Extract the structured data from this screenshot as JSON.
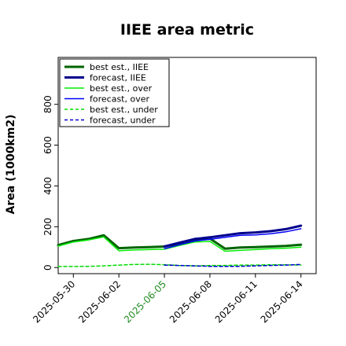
{
  "chart_data": {
    "type": "line",
    "title": "IIEE area metric",
    "xlabel": "",
    "ylabel": "Area (1000km2)",
    "ylim": [
      -30,
      1030
    ],
    "xlim": [
      "2025-05-29",
      "2025-06-15"
    ],
    "yticks": [
      0,
      200,
      400,
      600,
      800
    ],
    "yticklabels": [
      "0",
      "200",
      "400",
      "600",
      "800"
    ],
    "xticks": [
      "2025-05-30",
      "2025-06-02",
      "2025-06-05",
      "2025-06-08",
      "2025-06-11",
      "2025-06-14"
    ],
    "xticklabels": [
      "2025-05-30",
      "2025-06-02",
      "2025-06-05",
      "2025-06-08",
      "2025-06-11",
      "2025-06-14"
    ],
    "highlight_xtick": "2025-06-05",
    "highlight_color": "#228b22",
    "grid": false,
    "legend_position": "upper-left",
    "series": [
      {
        "name": "best est., IIEE",
        "color": "#006400",
        "width": 3,
        "dash": "solid",
        "x": [
          "2025-05-29",
          "2025-05-30",
          "2025-05-31",
          "2025-06-01",
          "2025-06-02",
          "2025-06-03",
          "2025-06-04",
          "2025-06-05",
          "2025-06-06",
          "2025-06-07",
          "2025-06-08",
          "2025-06-09",
          "2025-06-10",
          "2025-06-11",
          "2025-06-12",
          "2025-06-13",
          "2025-06-14"
        ],
        "values": [
          110,
          130,
          140,
          158,
          95,
          98,
          100,
          103,
          118,
          135,
          142,
          92,
          98,
          100,
          103,
          106,
          112
        ]
      },
      {
        "name": "forecast, IIEE",
        "color": "#00008b",
        "width": 3,
        "dash": "solid",
        "x": [
          "2025-06-05",
          "2025-06-06",
          "2025-06-07",
          "2025-06-08",
          "2025-06-09",
          "2025-06-10",
          "2025-06-11",
          "2025-06-12",
          "2025-06-13",
          "2025-06-14"
        ],
        "values": [
          103,
          122,
          140,
          148,
          158,
          168,
          172,
          178,
          188,
          205
        ]
      },
      {
        "name": "best est., over",
        "color": "#00ee00",
        "width": 1.5,
        "dash": "solid",
        "x": [
          "2025-05-29",
          "2025-05-30",
          "2025-05-31",
          "2025-06-01",
          "2025-06-02",
          "2025-06-03",
          "2025-06-04",
          "2025-06-05",
          "2025-06-06",
          "2025-06-07",
          "2025-06-08",
          "2025-06-09",
          "2025-06-10",
          "2025-06-11",
          "2025-06-12",
          "2025-06-13",
          "2025-06-14"
        ],
        "values": [
          105,
          125,
          135,
          150,
          82,
          86,
          88,
          90,
          108,
          125,
          128,
          80,
          84,
          88,
          92,
          95,
          100
        ]
      },
      {
        "name": "forecast, over",
        "color": "#0000ff",
        "width": 1.5,
        "dash": "solid",
        "x": [
          "2025-06-05",
          "2025-06-06",
          "2025-06-07",
          "2025-06-08",
          "2025-06-09",
          "2025-06-10",
          "2025-06-11",
          "2025-06-12",
          "2025-06-13",
          "2025-06-14"
        ],
        "values": [
          92,
          112,
          130,
          138,
          148,
          158,
          160,
          166,
          175,
          190
        ]
      },
      {
        "name": "best est., under",
        "color": "#00dd00",
        "width": 1.5,
        "dash": "dashed",
        "x": [
          "2025-05-29",
          "2025-05-30",
          "2025-05-31",
          "2025-06-01",
          "2025-06-02",
          "2025-06-03",
          "2025-06-04",
          "2025-06-05",
          "2025-06-06",
          "2025-06-07",
          "2025-06-08",
          "2025-06-09",
          "2025-06-10",
          "2025-06-11",
          "2025-06-12",
          "2025-06-13",
          "2025-06-14"
        ],
        "values": [
          5,
          5,
          6,
          8,
          12,
          15,
          16,
          14,
          10,
          8,
          10,
          10,
          12,
          12,
          14,
          13,
          12
        ]
      },
      {
        "name": "forecast, under",
        "color": "#0000cd",
        "width": 1.5,
        "dash": "dashed",
        "x": [
          "2025-06-05",
          "2025-06-06",
          "2025-06-07",
          "2025-06-08",
          "2025-06-09",
          "2025-06-10",
          "2025-06-11",
          "2025-06-12",
          "2025-06-13",
          "2025-06-14"
        ],
        "values": [
          12,
          10,
          8,
          6,
          6,
          6,
          8,
          10,
          12,
          15
        ]
      }
    ]
  }
}
